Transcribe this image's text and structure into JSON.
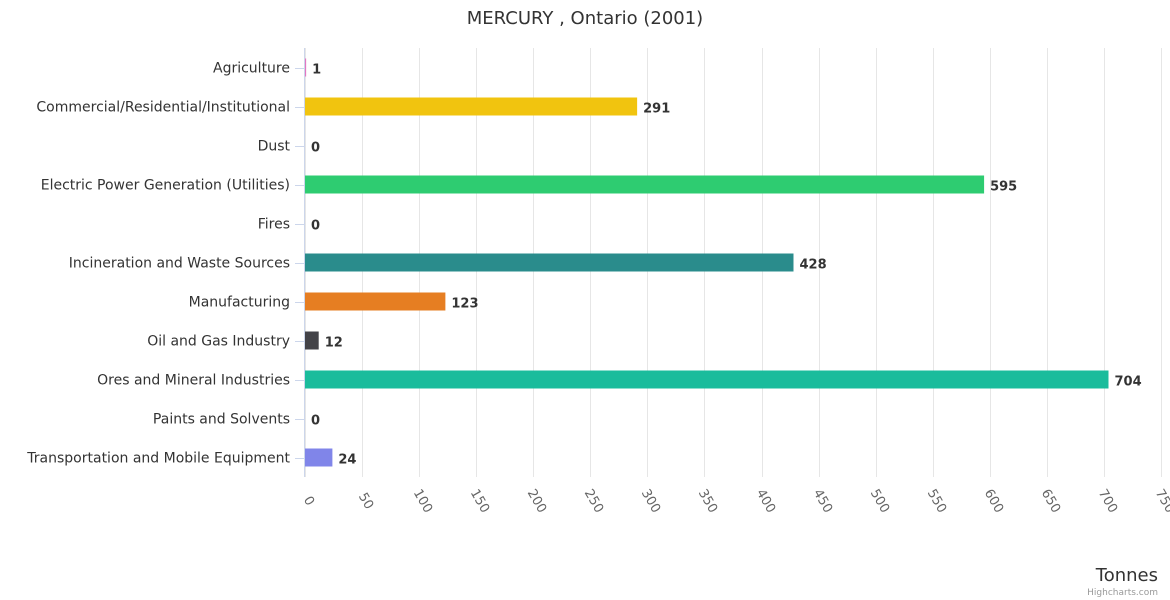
{
  "chart_data": {
    "type": "bar",
    "orientation": "horizontal",
    "title": "MERCURY , Ontario (2001)",
    "xlabel": "Tonnes",
    "ylabel": "",
    "xlim": [
      0,
      750
    ],
    "tick_step": 50,
    "grid": true,
    "legend": "none",
    "categories": [
      "Agriculture",
      "Commercial/Residential/Institutional",
      "Dust",
      "Electric Power Generation (Utilities)",
      "Fires",
      "Incineration and Waste Sources",
      "Manufacturing",
      "Oil and Gas Industry",
      "Ores and Mineral Industries",
      "Paints and Solvents",
      "Transportation and Mobile Equipment"
    ],
    "values": [
      1,
      291,
      0,
      595,
      0,
      428,
      123,
      12,
      704,
      0,
      24
    ],
    "colors": [
      "#e377c2",
      "#f1c40f",
      "#e67e22",
      "#2ecc71",
      "#e74c3c",
      "#2a8c8c",
      "#e67e22",
      "#434348",
      "#1abc9c",
      "#95a5a6",
      "#8085e9"
    ],
    "credits": "Highcharts.com"
  }
}
